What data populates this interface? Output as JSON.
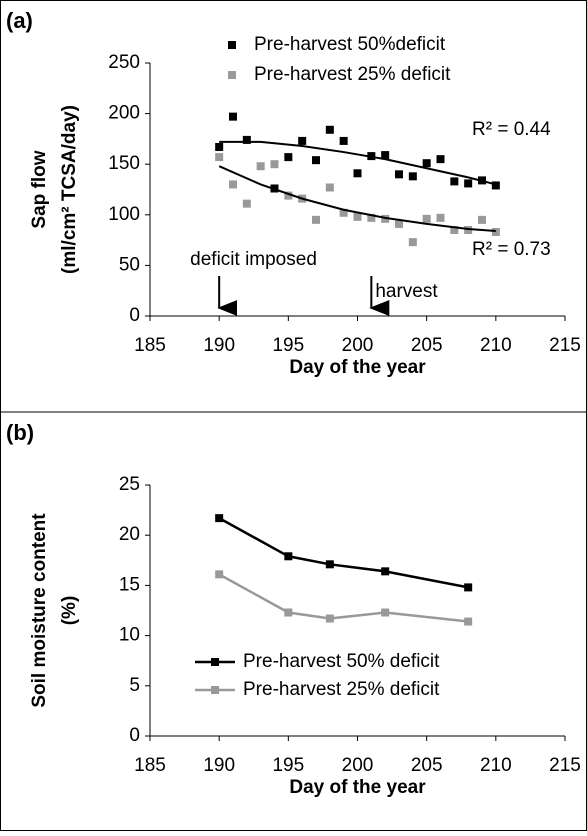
{
  "chart_data": [
    {
      "type": "scatter",
      "panel_label": "(a)",
      "xlabel": "Day of the year",
      "ylabel": [
        "Sap flow",
        "(ml/cm² TCSA/day)"
      ],
      "xlim": [
        185,
        215
      ],
      "xticks": [
        185,
        190,
        195,
        200,
        205,
        210,
        215
      ],
      "ylim": [
        0,
        250
      ],
      "yticks": [
        0,
        50,
        100,
        150,
        200,
        250
      ],
      "legend": "top",
      "series": [
        {
          "name": "Pre-harvest 50%deficit",
          "color": "#000000",
          "x": [
            190,
            191,
            192,
            194,
            195,
            196,
            197,
            198,
            199,
            200,
            201,
            202,
            203,
            204,
            205,
            206,
            207,
            208,
            209,
            210
          ],
          "values": [
            167,
            197,
            174,
            126,
            157,
            173,
            154,
            184,
            173,
            141,
            158,
            159,
            140,
            138,
            151,
            155,
            133,
            131,
            134,
            129
          ],
          "trend_x": [
            190,
            193,
            196,
            199,
            202,
            205,
            208,
            210
          ],
          "trend_values": [
            172,
            172,
            168,
            162,
            155,
            146,
            137,
            130
          ],
          "trend_label": "R² = 0.44"
        },
        {
          "name": "Pre-harvest 25% deficit",
          "color": "#999999",
          "x": [
            190,
            191,
            192,
            193,
            194,
            195,
            196,
            197,
            198,
            199,
            200,
            201,
            202,
            203,
            204,
            205,
            206,
            207,
            208,
            209,
            210
          ],
          "values": [
            157,
            130,
            111,
            148,
            150,
            119,
            116,
            95,
            127,
            102,
            98,
            97,
            96,
            91,
            73,
            96,
            97,
            85,
            85,
            95,
            83
          ],
          "trend_x": [
            190,
            193,
            196,
            199,
            202,
            205,
            208,
            210
          ],
          "trend_values": [
            148,
            130,
            116,
            105,
            97,
            91,
            86,
            84
          ],
          "trend_label": "R² = 0.73"
        }
      ],
      "annotations": [
        {
          "text": "deficit imposed",
          "x": 190
        },
        {
          "text": "harvest",
          "x": 201
        }
      ]
    },
    {
      "type": "line",
      "panel_label": "(b)",
      "xlabel": "Day of the year",
      "ylabel": [
        "Soil moisture content",
        "(%)"
      ],
      "xlim": [
        185,
        215
      ],
      "xticks": [
        185,
        190,
        195,
        200,
        205,
        210,
        215
      ],
      "ylim": [
        0,
        25
      ],
      "yticks": [
        0,
        5,
        10,
        15,
        20,
        25
      ],
      "legend": "lower center",
      "series": [
        {
          "name": "Pre-harvest 50% deficit",
          "color": "#000000",
          "x": [
            190,
            195,
            198,
            202,
            208
          ],
          "values": [
            21.7,
            17.9,
            17.1,
            16.4,
            14.8
          ]
        },
        {
          "name": "Pre-harvest 25% deficit",
          "color": "#999999",
          "x": [
            190,
            195,
            198,
            202,
            208
          ],
          "values": [
            16.1,
            12.3,
            11.7,
            12.3,
            11.4
          ]
        }
      ]
    }
  ]
}
